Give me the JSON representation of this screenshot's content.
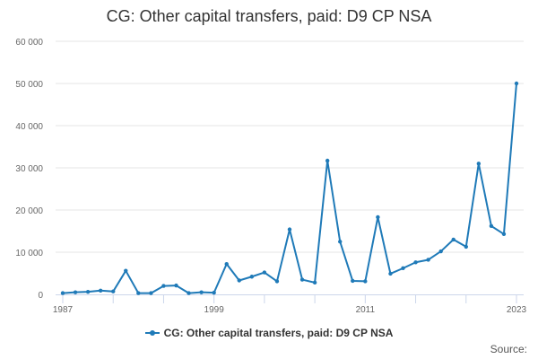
{
  "chart_data": {
    "type": "line",
    "title": "CG: Other capital transfers, paid: D9 CP NSA",
    "xlabel": "",
    "ylabel": "",
    "x": [
      1987,
      1988,
      1989,
      1990,
      1991,
      1992,
      1993,
      1994,
      1995,
      1996,
      1997,
      1998,
      1999,
      2000,
      2001,
      2002,
      2003,
      2004,
      2005,
      2006,
      2007,
      2008,
      2009,
      2010,
      2011,
      2012,
      2013,
      2014,
      2015,
      2016,
      2017,
      2018,
      2019,
      2020,
      2021,
      2022,
      2023
    ],
    "series": [
      {
        "name": "CG: Other capital transfers, paid: D9 CP NSA",
        "values": [
          300,
          500,
          600,
          900,
          700,
          5600,
          300,
          300,
          2000,
          2100,
          300,
          500,
          400,
          7200,
          3300,
          4200,
          5200,
          3100,
          15400,
          3500,
          2800,
          31700,
          12500,
          3200,
          3100,
          18300,
          4900,
          6200,
          7600,
          8200,
          10200,
          13000,
          11300,
          31000,
          16200,
          14300,
          50000
        ],
        "color": "#1f7ab8"
      }
    ],
    "x_ticks": [
      "1987",
      "1999",
      "2011",
      "2023"
    ],
    "y_ticks": [
      "0",
      "10 000",
      "20 000",
      "30 000",
      "40 000",
      "50 000",
      "60 000"
    ],
    "xlim": [
      1987,
      2023
    ],
    "ylim": [
      0,
      60000
    ],
    "grid": "horizontal",
    "legend_position": "bottom-center"
  },
  "legend_label": "CG: Other capital transfers, paid: D9 CP NSA",
  "source_text": "Source:"
}
